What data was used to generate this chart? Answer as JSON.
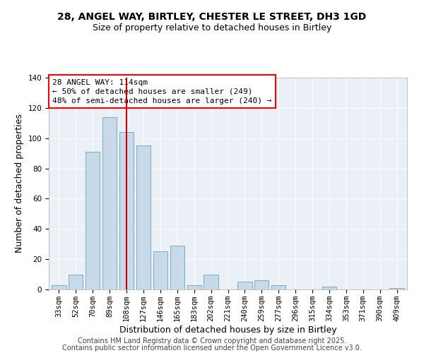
{
  "title": "28, ANGEL WAY, BIRTLEY, CHESTER LE STREET, DH3 1GD",
  "subtitle": "Size of property relative to detached houses in Birtley",
  "xlabel": "Distribution of detached houses by size in Birtley",
  "ylabel": "Number of detached properties",
  "bar_color": "#c8daea",
  "bar_edge_color": "#7aaac8",
  "bg_color": "#eaf0f6",
  "categories": [
    "33sqm",
    "52sqm",
    "70sqm",
    "89sqm",
    "108sqm",
    "127sqm",
    "146sqm",
    "165sqm",
    "183sqm",
    "202sqm",
    "221sqm",
    "240sqm",
    "259sqm",
    "277sqm",
    "296sqm",
    "315sqm",
    "334sqm",
    "353sqm",
    "371sqm",
    "390sqm",
    "409sqm"
  ],
  "values": [
    3,
    10,
    91,
    114,
    104,
    95,
    25,
    29,
    3,
    10,
    0,
    5,
    6,
    3,
    0,
    0,
    2,
    0,
    0,
    0,
    1
  ],
  "vline_pos": 4.0,
  "vline_color": "#cc0000",
  "annotation_title": "28 ANGEL WAY: 114sqm",
  "annotation_line1": "← 50% of detached houses are smaller (249)",
  "annotation_line2": "48% of semi-detached houses are larger (240) →",
  "ylim": [
    0,
    140
  ],
  "yticks": [
    0,
    20,
    40,
    60,
    80,
    100,
    120,
    140
  ],
  "footer1": "Contains HM Land Registry data © Crown copyright and database right 2025.",
  "footer2": "Contains public sector information licensed under the Open Government Licence v3.0.",
  "title_fontsize": 10,
  "subtitle_fontsize": 9,
  "axis_label_fontsize": 9,
  "tick_fontsize": 7.5,
  "annotation_fontsize": 8,
  "footer_fontsize": 7
}
